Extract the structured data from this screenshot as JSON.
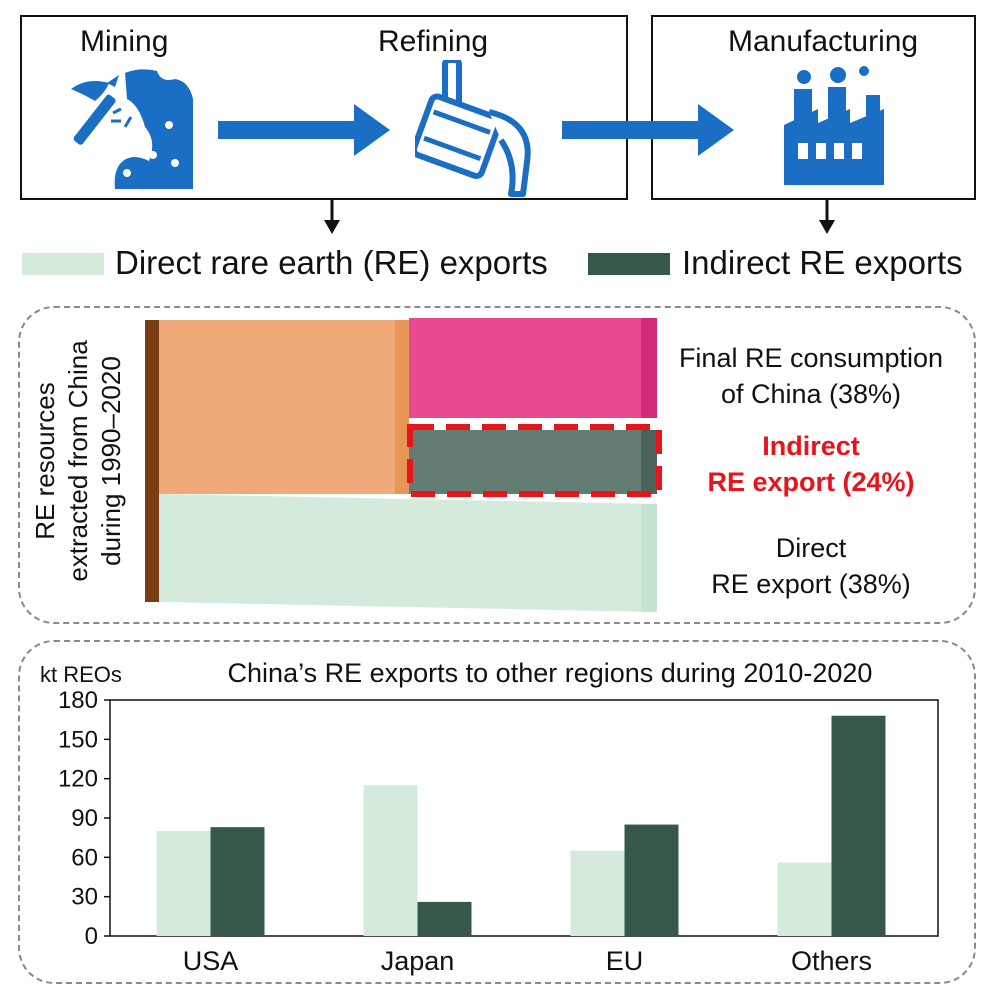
{
  "stages": {
    "mining": "Mining",
    "refining": "Refining",
    "manufacturing": "Manufacturing"
  },
  "icons": {
    "mining": "pickaxe-rock-icon",
    "refining": "pouring-ladle-icon",
    "manufacturing": "factory-icon",
    "color": "#1a6fc4"
  },
  "legend": {
    "direct": "Direct rare earth (RE) exports",
    "indirect": "Indirect RE exports",
    "direct_color": "#d4ebdc",
    "indirect_color": "#365848"
  },
  "sankey": {
    "source_label_lines": [
      "RE resources",
      "extracted from China",
      "during 1990–2020"
    ],
    "flows": [
      {
        "name": "Final RE consumption of China",
        "share_pct": 38,
        "label_lines": [
          "Final RE consumption",
          "of China (38%)"
        ],
        "color": "#e84a8f"
      },
      {
        "name": "Indirect RE export",
        "share_pct": 24,
        "label_lines": [
          "Indirect",
          "RE export (24%)"
        ],
        "color": "#647d72",
        "highlight": true
      },
      {
        "name": "Direct RE export",
        "share_pct": 38,
        "label_lines": [
          "Direct",
          "RE export (38%)"
        ],
        "color": "#d4ebdc"
      }
    ],
    "colors": {
      "source": "#7a3c12",
      "processed": "#f0aa7a",
      "processed_dark": "#e89658",
      "highlight_border": "#e8141b"
    }
  },
  "chart_data": {
    "type": "bar",
    "title": "China’s RE exports to other regions during 2010-2020",
    "ylabel": "kt REOs",
    "xlabel": "",
    "categories": [
      "USA",
      "Japan",
      "EU",
      "Others"
    ],
    "series": [
      {
        "name": "Direct rare earth (RE) exports",
        "color": "#d4ebdc",
        "values": [
          80,
          115,
          65,
          56
        ]
      },
      {
        "name": "Indirect RE exports",
        "color": "#365848",
        "values": [
          83,
          26,
          85,
          168
        ]
      }
    ],
    "ylim": [
      0,
      180
    ],
    "yticks": [
      0,
      30,
      60,
      90,
      120,
      150,
      180
    ],
    "grid": false
  }
}
